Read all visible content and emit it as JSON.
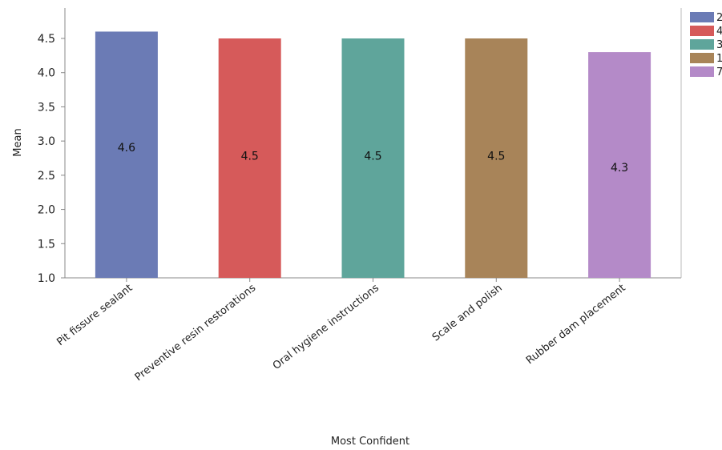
{
  "chart_data": {
    "type": "bar",
    "title": "",
    "xlabel": "Most Confident",
    "ylabel": "Mean",
    "ylim": [
      1.0,
      4.9
    ],
    "yticks": [
      "1.0",
      "1.5",
      "2.0",
      "2.5",
      "3.0",
      "3.5",
      "4.0",
      "4.5"
    ],
    "categories": [
      "Pit fissure sealant",
      "Preventive resin restorations",
      "Oral hygiene instructions",
      "Scale and polish",
      "Rubber dam placement"
    ],
    "values": [
      4.6,
      4.5,
      4.5,
      4.5,
      4.3
    ],
    "data_labels": [
      "4.6",
      "4.5",
      "4.5",
      "4.5",
      "4.3"
    ],
    "colors": [
      "#6b7bb5",
      "#d65a5a",
      "#5fa59b",
      "#a88459",
      "#b48ac8"
    ],
    "legend": {
      "placement": "top-right",
      "entries": [
        "2",
        "4",
        "3",
        "1",
        "7"
      ]
    },
    "grid": false
  }
}
